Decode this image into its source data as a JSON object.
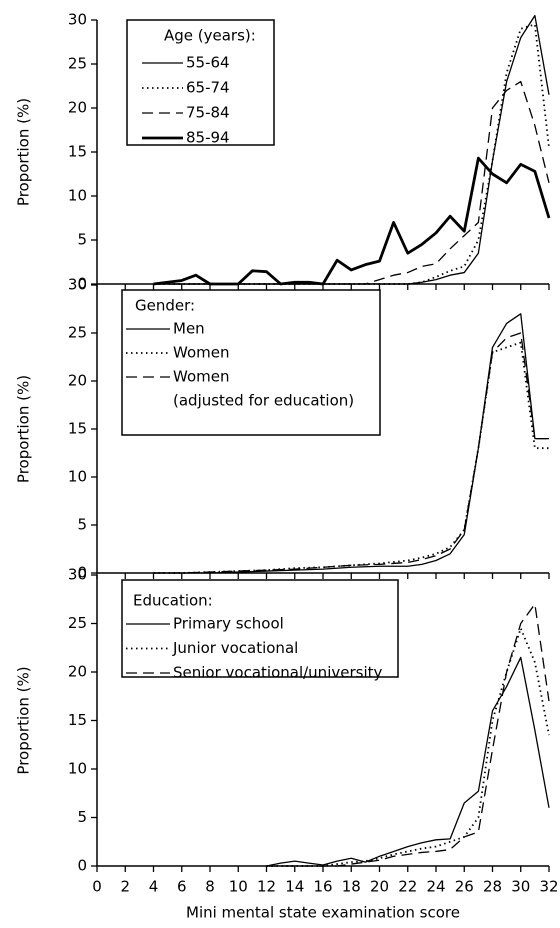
{
  "chart_data": [
    {
      "type": "line",
      "ylabel": "Proportion (%)",
      "legend_title": "Age (years):",
      "xlim": [
        0,
        32
      ],
      "ylim": [
        0,
        30
      ],
      "yticks": [
        0,
        5,
        10,
        15,
        20,
        25,
        30
      ],
      "x": [
        4,
        5,
        6,
        7,
        8,
        9,
        10,
        11,
        12,
        13,
        14,
        15,
        16,
        17,
        18,
        19,
        20,
        21,
        22,
        23,
        24,
        25,
        26,
        27,
        28,
        29,
        30,
        31,
        32
      ],
      "series": [
        {
          "name": "55-64",
          "color": "#000",
          "line_style": "solid",
          "values": [
            0,
            0,
            0,
            0,
            0,
            0,
            0,
            0,
            0,
            0,
            0,
            0,
            0,
            0,
            0,
            0,
            0,
            0,
            0,
            0.2,
            0.5,
            1,
            1.3,
            3.5,
            14,
            23,
            28,
            30.5,
            21.5
          ]
        },
        {
          "name": "65-74",
          "color": "#000",
          "line_style": "dotted",
          "values": [
            0,
            0,
            0,
            0,
            0,
            0,
            0,
            0,
            0,
            0,
            0,
            0,
            0,
            0,
            0,
            0,
            0,
            0,
            0,
            0.2,
            0.8,
            1.5,
            2,
            5,
            14,
            24,
            29,
            29.5,
            15.5
          ]
        },
        {
          "name": "75-84",
          "color": "#000",
          "line_style": "dashed",
          "values": [
            0,
            0,
            0,
            0,
            0,
            0,
            0,
            0,
            0,
            0,
            0,
            0,
            0,
            0,
            0,
            0,
            0.5,
            1,
            1.3,
            2,
            2.3,
            4,
            5.5,
            7,
            20,
            22,
            23,
            18,
            11.5
          ]
        },
        {
          "name": "85-94",
          "color": "#000",
          "line_style": "thick",
          "values": [
            0,
            0.2,
            0.4,
            1,
            0,
            0,
            0,
            1.5,
            1.4,
            0,
            0.2,
            0.2,
            0,
            2.7,
            1.6,
            2.2,
            2.6,
            7,
            3.5,
            4.5,
            5.8,
            7.7,
            6,
            14.3,
            12.5,
            11.5,
            13.6,
            12.8,
            7.5
          ]
        }
      ]
    },
    {
      "type": "line",
      "ylabel": "Proportion (%)",
      "legend_title": "Gender:",
      "xlim": [
        0,
        32
      ],
      "ylim": [
        0,
        30
      ],
      "yticks": [
        0,
        5,
        10,
        15,
        20,
        25,
        30
      ],
      "x": [
        4,
        6,
        8,
        10,
        12,
        14,
        16,
        18,
        20,
        22,
        23,
        24,
        25,
        26,
        27,
        28,
        29,
        30,
        31,
        32
      ],
      "series": [
        {
          "name": "Men",
          "color": "#000",
          "line_style": "solid",
          "values": [
            0,
            0,
            0,
            0.1,
            0.2,
            0.3,
            0.4,
            0.6,
            0.7,
            0.7,
            0.9,
            1.3,
            2,
            4,
            13,
            23.5,
            26,
            27,
            14,
            14
          ]
        },
        {
          "name": "Women",
          "color": "#000",
          "line_style": "dotted",
          "values": [
            0,
            0,
            0.1,
            0.2,
            0.3,
            0.5,
            0.6,
            0.8,
            1,
            1.3,
            1.6,
            2,
            2.7,
            4.5,
            13,
            23,
            23.5,
            24,
            13,
            13
          ]
        },
        {
          "name": "Women",
          "note": "(adjusted for education)",
          "color": "#000",
          "line_style": "dashed",
          "values": [
            0,
            0,
            0.1,
            0.2,
            0.3,
            0.4,
            0.6,
            0.8,
            0.9,
            1.1,
            1.4,
            1.8,
            2.5,
            4.5,
            13,
            23,
            24.5,
            25,
            14,
            14
          ]
        }
      ]
    },
    {
      "type": "line",
      "ylabel": "Proportion (%)",
      "xlabel": "Mini mental state examination score",
      "legend_title": "Education:",
      "xlim": [
        0,
        32
      ],
      "ylim": [
        0,
        30
      ],
      "yticks": [
        0,
        5,
        10,
        15,
        20,
        25,
        30
      ],
      "xticks": [
        0,
        2,
        4,
        6,
        8,
        10,
        12,
        14,
        16,
        18,
        20,
        22,
        24,
        26,
        28,
        30,
        32
      ],
      "x": [
        12,
        13,
        14,
        15,
        16,
        17,
        18,
        19,
        20,
        21,
        22,
        23,
        24,
        25,
        26,
        27,
        28,
        29,
        30,
        31,
        32
      ],
      "series": [
        {
          "name": "Primary school",
          "color": "#000",
          "line_style": "solid",
          "values": [
            0,
            0.3,
            0.5,
            0.3,
            0.1,
            0.5,
            0.8,
            0.4,
            1,
            1.5,
            2,
            2.4,
            2.7,
            2.8,
            6.5,
            7.7,
            16,
            18.5,
            21.5,
            14,
            6
          ]
        },
        {
          "name": "Junior vocational",
          "color": "#000",
          "line_style": "dotted",
          "values": [
            0,
            0,
            0,
            0,
            0,
            0.2,
            0.4,
            0.5,
            0.8,
            1.2,
            1.5,
            1.8,
            2,
            2.5,
            3,
            5,
            15,
            20,
            24.5,
            21,
            13.5
          ]
        },
        {
          "name": "Senior vocational/university",
          "color": "#000",
          "line_style": "dashed",
          "values": [
            0,
            0,
            0,
            0,
            0,
            0,
            0.2,
            0.4,
            0.6,
            1,
            1.2,
            1.4,
            1.5,
            1.7,
            3,
            3.5,
            12,
            20,
            25,
            27,
            17
          ]
        }
      ]
    }
  ]
}
